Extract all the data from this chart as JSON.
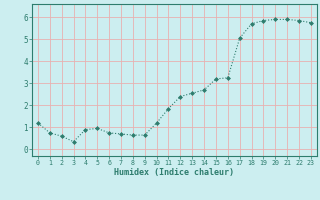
{
  "x": [
    0,
    1,
    2,
    3,
    4,
    5,
    6,
    7,
    8,
    9,
    10,
    11,
    12,
    13,
    14,
    15,
    16,
    17,
    18,
    19,
    20,
    21,
    22,
    23
  ],
  "y": [
    1.2,
    0.75,
    0.6,
    0.35,
    0.9,
    0.95,
    0.75,
    0.7,
    0.65,
    0.65,
    1.2,
    1.85,
    2.4,
    2.55,
    2.7,
    3.2,
    3.25,
    5.05,
    5.7,
    5.85,
    5.9,
    5.9,
    5.85,
    5.75
  ],
  "line_color": "#2e7d6e",
  "marker": "D",
  "marker_size": 2.0,
  "bg_color": "#cceef0",
  "grid_color": "#e8b0b0",
  "xlabel": "Humidex (Indice chaleur)",
  "xlim": [
    -0.5,
    23.5
  ],
  "ylim": [
    -0.3,
    6.6
  ],
  "xtick_labels": [
    "0",
    "1",
    "2",
    "3",
    "4",
    "5",
    "6",
    "7",
    "8",
    "9",
    "10",
    "11",
    "12",
    "13",
    "14",
    "15",
    "16",
    "17",
    "18",
    "19",
    "20",
    "21",
    "22",
    "23"
  ],
  "ytick_values": [
    0,
    1,
    2,
    3,
    4,
    5,
    6
  ],
  "tick_color": "#2e7d6e",
  "label_color": "#2e7d6e",
  "xlabel_fontsize": 6.0,
  "ytick_fontsize": 5.5,
  "xtick_fontsize": 4.8
}
